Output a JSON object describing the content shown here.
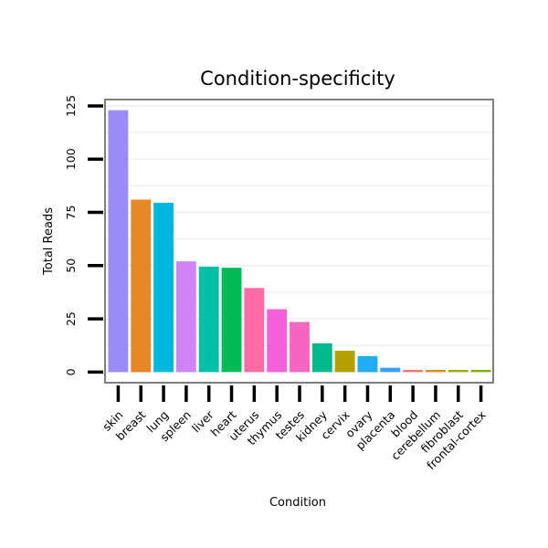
{
  "chart_data": {
    "type": "bar",
    "title": "Condition-specificity",
    "xlabel": "Condition",
    "ylabel": "Total Reads",
    "ylim": [
      -5,
      128
    ],
    "yticks": [
      0,
      25,
      50,
      75,
      100,
      125
    ],
    "grid": true,
    "categories": [
      "skin",
      "breast",
      "lung",
      "spleen",
      "liver",
      "heart",
      "uterus",
      "thymus",
      "testes",
      "kidney",
      "cervix",
      "ovary",
      "placenta",
      "blood",
      "cerebellum",
      "fibroblast",
      "frontal-cortex"
    ],
    "values": [
      123,
      81,
      79.5,
      52,
      49.5,
      49,
      39.5,
      29.5,
      23.5,
      13.5,
      10,
      7.5,
      2,
      1,
      1,
      1,
      1
    ],
    "colors": [
      "#9A8BF7",
      "#E8862A",
      "#00B8DD",
      "#D082F7",
      "#00BFA7",
      "#00BB55",
      "#FF6AA4",
      "#F460D8",
      "#F766BE",
      "#00B88E",
      "#B4A100",
      "#1FADF2",
      "#3AA0F5",
      "#F8766D",
      "#D89000",
      "#A3A500",
      "#7CAE00"
    ]
  }
}
